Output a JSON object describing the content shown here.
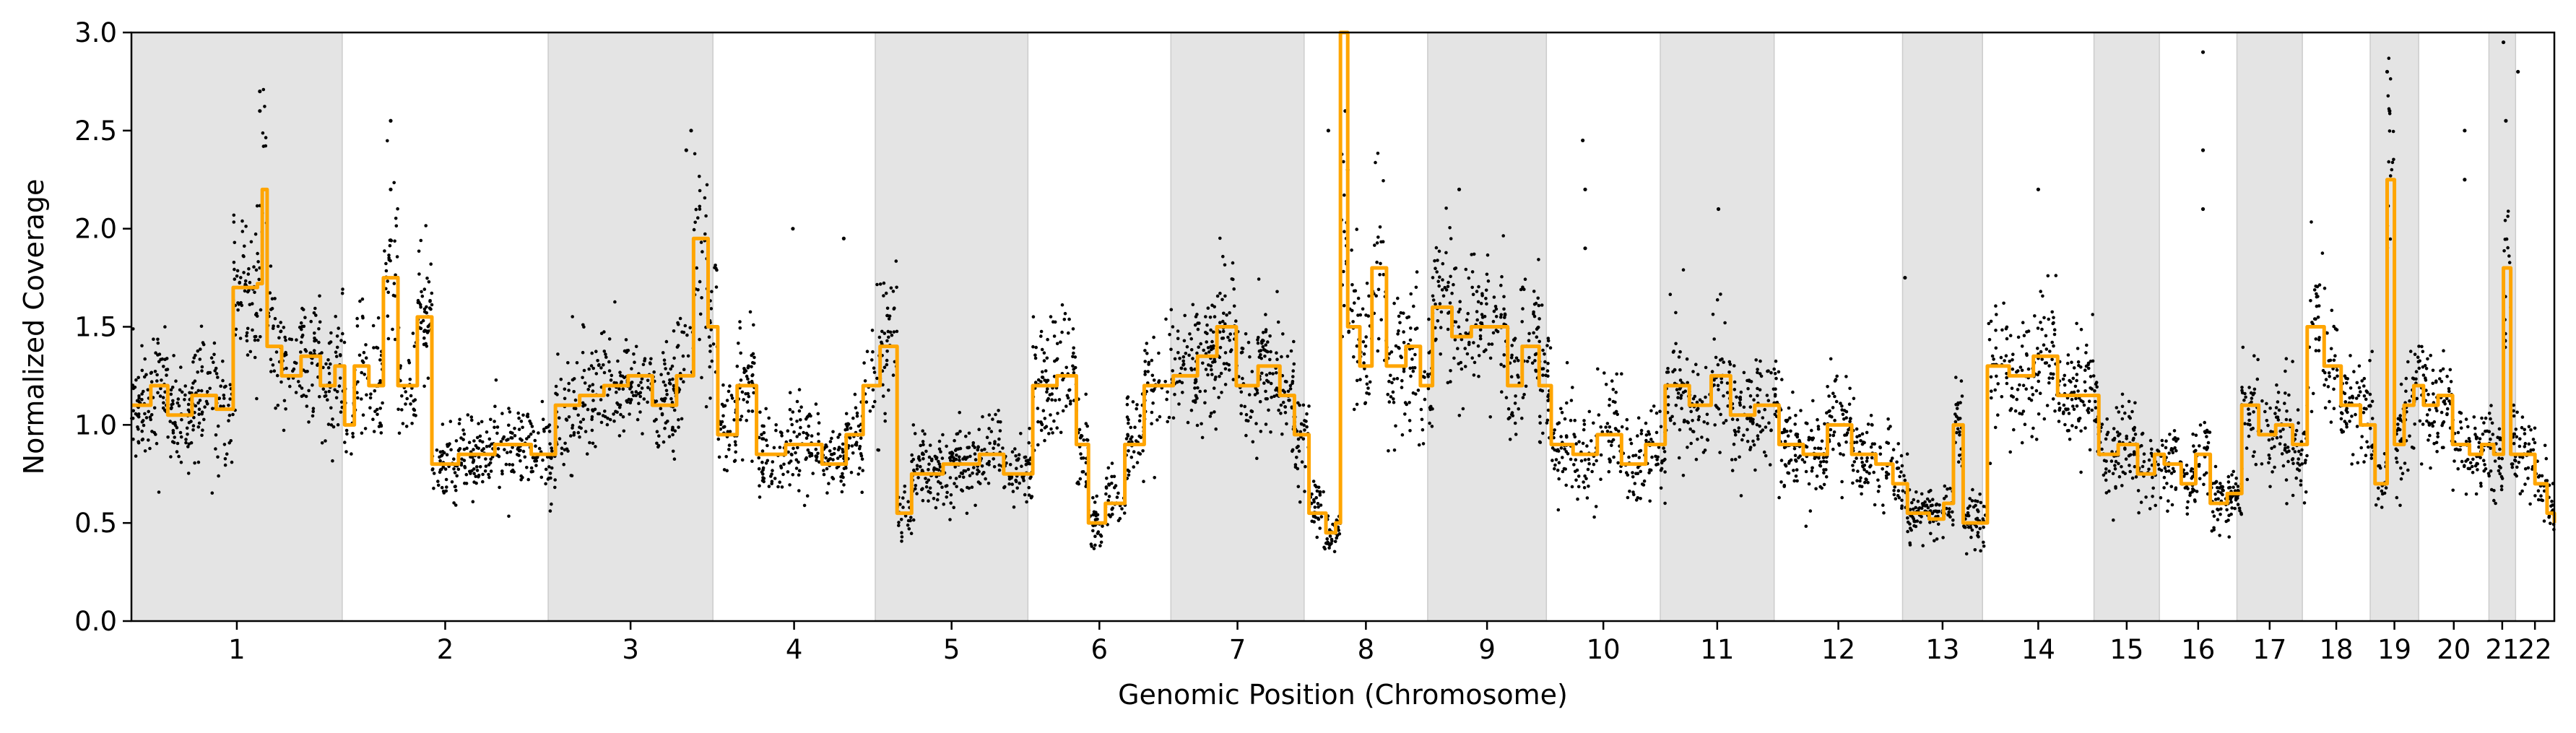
{
  "chart_data": {
    "type": "scatter",
    "xlabel": "Genomic Position (Chromosome)",
    "ylabel": "Normalized Coverage",
    "ylim": [
      0,
      3.0
    ],
    "yticks": [
      "0.0",
      "0.5",
      "1.0",
      "1.5",
      "2.0",
      "2.5",
      "3.0"
    ],
    "grid": false,
    "shaded_bands": "alternating chromosomes shaded light grey",
    "colors": {
      "points": "#000000",
      "line": "#FFA500",
      "band": "#E4E4E4"
    },
    "chromosomes": [
      {
        "label": "1",
        "start": 0.0,
        "end": 0.087,
        "shaded": true
      },
      {
        "label": "2",
        "start": 0.087,
        "end": 0.172,
        "shaded": false
      },
      {
        "label": "3",
        "start": 0.172,
        "end": 0.24,
        "shaded": true
      },
      {
        "label": "4",
        "start": 0.24,
        "end": 0.307,
        "shaded": false
      },
      {
        "label": "5",
        "start": 0.307,
        "end": 0.37,
        "shaded": true
      },
      {
        "label": "6",
        "start": 0.37,
        "end": 0.429,
        "shaded": false
      },
      {
        "label": "7",
        "start": 0.429,
        "end": 0.484,
        "shaded": true
      },
      {
        "label": "8",
        "start": 0.484,
        "end": 0.535,
        "shaded": false
      },
      {
        "label": "9",
        "start": 0.535,
        "end": 0.584,
        "shaded": true
      },
      {
        "label": "10",
        "start": 0.584,
        "end": 0.631,
        "shaded": false
      },
      {
        "label": "11",
        "start": 0.631,
        "end": 0.678,
        "shaded": true
      },
      {
        "label": "12",
        "start": 0.678,
        "end": 0.731,
        "shaded": false
      },
      {
        "label": "13",
        "start": 0.731,
        "end": 0.764,
        "shaded": true
      },
      {
        "label": "14",
        "start": 0.764,
        "end": 0.81,
        "shaded": false
      },
      {
        "label": "15",
        "start": 0.81,
        "end": 0.837,
        "shaded": true
      },
      {
        "label": "16",
        "start": 0.837,
        "end": 0.869,
        "shaded": false
      },
      {
        "label": "17",
        "start": 0.869,
        "end": 0.896,
        "shaded": true
      },
      {
        "label": "18",
        "start": 0.896,
        "end": 0.924,
        "shaded": false
      },
      {
        "label": "19",
        "start": 0.924,
        "end": 0.944,
        "shaded": true
      },
      {
        "label": "20",
        "start": 0.944,
        "end": 0.973,
        "shaded": false
      },
      {
        "label": "21",
        "start": 0.973,
        "end": 0.984,
        "shaded": true
      },
      {
        "label": "22",
        "start": 0.984,
        "end": 1.0,
        "shaded": false
      }
    ],
    "segments": [
      [
        0.0,
        1.1
      ],
      [
        0.008,
        1.2
      ],
      [
        0.015,
        1.05
      ],
      [
        0.025,
        1.15
      ],
      [
        0.035,
        1.08
      ],
      [
        0.042,
        1.7
      ],
      [
        0.052,
        1.72
      ],
      [
        0.054,
        2.2
      ],
      [
        0.056,
        1.4
      ],
      [
        0.062,
        1.25
      ],
      [
        0.07,
        1.35
      ],
      [
        0.078,
        1.2
      ],
      [
        0.084,
        1.3
      ],
      [
        0.088,
        1.0
      ],
      [
        0.092,
        1.3
      ],
      [
        0.098,
        1.2
      ],
      [
        0.104,
        1.75
      ],
      [
        0.11,
        1.2
      ],
      [
        0.118,
        1.55
      ],
      [
        0.124,
        0.8
      ],
      [
        0.135,
        0.85
      ],
      [
        0.15,
        0.9
      ],
      [
        0.165,
        0.85
      ],
      [
        0.175,
        1.1
      ],
      [
        0.185,
        1.15
      ],
      [
        0.195,
        1.2
      ],
      [
        0.205,
        1.25
      ],
      [
        0.215,
        1.1
      ],
      [
        0.225,
        1.25
      ],
      [
        0.232,
        1.95
      ],
      [
        0.238,
        1.5
      ],
      [
        0.242,
        0.95
      ],
      [
        0.25,
        1.2
      ],
      [
        0.258,
        0.85
      ],
      [
        0.27,
        0.9
      ],
      [
        0.285,
        0.8
      ],
      [
        0.295,
        0.95
      ],
      [
        0.302,
        1.2
      ],
      [
        0.309,
        1.4
      ],
      [
        0.316,
        0.55
      ],
      [
        0.322,
        0.75
      ],
      [
        0.335,
        0.8
      ],
      [
        0.35,
        0.85
      ],
      [
        0.36,
        0.75
      ],
      [
        0.372,
        1.2
      ],
      [
        0.382,
        1.25
      ],
      [
        0.39,
        0.9
      ],
      [
        0.395,
        0.5
      ],
      [
        0.402,
        0.6
      ],
      [
        0.41,
        0.9
      ],
      [
        0.418,
        1.2
      ],
      [
        0.43,
        1.25
      ],
      [
        0.44,
        1.35
      ],
      [
        0.448,
        1.5
      ],
      [
        0.456,
        1.2
      ],
      [
        0.465,
        1.3
      ],
      [
        0.474,
        1.15
      ],
      [
        0.48,
        0.95
      ],
      [
        0.486,
        0.55
      ],
      [
        0.493,
        0.45
      ],
      [
        0.497,
        0.5
      ],
      [
        0.499,
        3.0
      ],
      [
        0.502,
        1.5
      ],
      [
        0.507,
        1.3
      ],
      [
        0.512,
        1.8
      ],
      [
        0.518,
        1.3
      ],
      [
        0.526,
        1.4
      ],
      [
        0.532,
        1.2
      ],
      [
        0.537,
        1.6
      ],
      [
        0.545,
        1.45
      ],
      [
        0.553,
        1.5
      ],
      [
        0.562,
        1.5
      ],
      [
        0.568,
        1.2
      ],
      [
        0.574,
        1.4
      ],
      [
        0.581,
        1.2
      ],
      [
        0.586,
        0.9
      ],
      [
        0.595,
        0.85
      ],
      [
        0.605,
        0.95
      ],
      [
        0.615,
        0.8
      ],
      [
        0.625,
        0.9
      ],
      [
        0.633,
        1.2
      ],
      [
        0.643,
        1.1
      ],
      [
        0.652,
        1.25
      ],
      [
        0.66,
        1.05
      ],
      [
        0.67,
        1.1
      ],
      [
        0.68,
        0.9
      ],
      [
        0.69,
        0.85
      ],
      [
        0.7,
        1.0
      ],
      [
        0.71,
        0.85
      ],
      [
        0.72,
        0.8
      ],
      [
        0.727,
        0.7
      ],
      [
        0.733,
        0.55
      ],
      [
        0.742,
        0.52
      ],
      [
        0.748,
        0.6
      ],
      [
        0.752,
        1.0
      ],
      [
        0.756,
        0.5
      ],
      [
        0.762,
        0.5
      ],
      [
        0.766,
        1.3
      ],
      [
        0.775,
        1.25
      ],
      [
        0.785,
        1.35
      ],
      [
        0.795,
        1.15
      ],
      [
        0.806,
        1.15
      ],
      [
        0.812,
        0.85
      ],
      [
        0.82,
        0.9
      ],
      [
        0.828,
        0.75
      ],
      [
        0.835,
        0.85
      ],
      [
        0.839,
        0.8
      ],
      [
        0.846,
        0.7
      ],
      [
        0.852,
        0.85
      ],
      [
        0.858,
        0.6
      ],
      [
        0.865,
        0.65
      ],
      [
        0.871,
        1.1
      ],
      [
        0.878,
        0.95
      ],
      [
        0.885,
        1.0
      ],
      [
        0.892,
        0.9
      ],
      [
        0.898,
        1.5
      ],
      [
        0.905,
        1.3
      ],
      [
        0.912,
        1.1
      ],
      [
        0.92,
        1.0
      ],
      [
        0.926,
        0.7
      ],
      [
        0.931,
        2.25
      ],
      [
        0.934,
        0.9
      ],
      [
        0.938,
        1.1
      ],
      [
        0.942,
        1.2
      ],
      [
        0.946,
        1.1
      ],
      [
        0.952,
        1.15
      ],
      [
        0.958,
        0.9
      ],
      [
        0.965,
        0.85
      ],
      [
        0.97,
        0.9
      ],
      [
        0.975,
        0.85
      ],
      [
        0.979,
        1.8
      ],
      [
        0.982,
        0.85
      ],
      [
        0.986,
        0.85
      ],
      [
        0.992,
        0.7
      ],
      [
        0.997,
        0.55
      ],
      [
        1.0,
        0.5
      ]
    ],
    "outliers": [
      [
        0.053,
        2.7
      ],
      [
        0.053,
        2.6
      ],
      [
        0.107,
        2.55
      ],
      [
        0.107,
        2.2
      ],
      [
        0.231,
        2.5
      ],
      [
        0.229,
        2.4
      ],
      [
        0.273,
        2.0
      ],
      [
        0.294,
        1.95
      ],
      [
        0.494,
        2.5
      ],
      [
        0.501,
        2.6
      ],
      [
        0.502,
        2.3
      ],
      [
        0.548,
        2.2
      ],
      [
        0.599,
        2.45
      ],
      [
        0.6,
        2.2
      ],
      [
        0.6,
        1.9
      ],
      [
        0.655,
        2.1
      ],
      [
        0.732,
        1.75
      ],
      [
        0.787,
        2.2
      ],
      [
        0.855,
        2.9
      ],
      [
        0.855,
        2.4
      ],
      [
        0.855,
        2.1
      ],
      [
        0.931,
        2.8
      ],
      [
        0.932,
        2.6
      ],
      [
        0.963,
        2.5
      ],
      [
        0.963,
        2.25
      ],
      [
        0.979,
        2.95
      ],
      [
        0.98,
        2.55
      ],
      [
        0.985,
        2.8
      ]
    ]
  }
}
